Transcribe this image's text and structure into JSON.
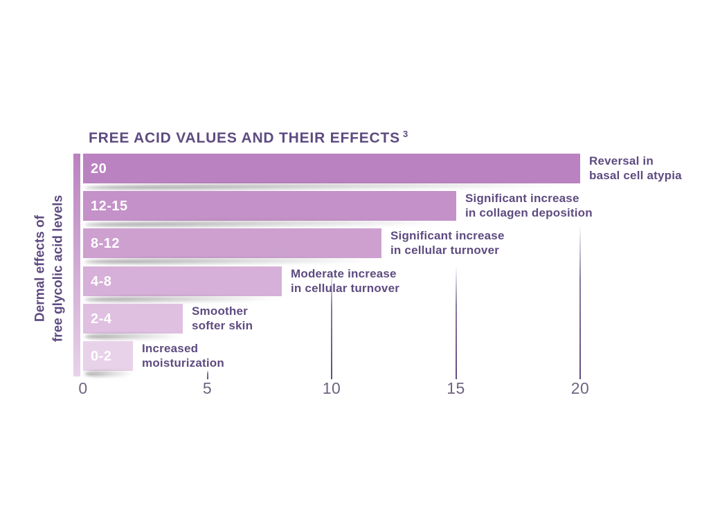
{
  "page": {
    "background": "#ffffff"
  },
  "chart_data": {
    "type": "bar",
    "orientation": "horizontal",
    "title": "FREE ACID VALUES AND THEIR EFFECTS",
    "title_superscript": "3",
    "y_axis_label_lines": [
      "Dermal effects of",
      "free glycolic acid levels"
    ],
    "categories": [
      "20",
      "12-15",
      "8-12",
      "4-8",
      "2-4",
      "0-2"
    ],
    "values": [
      20,
      15,
      12,
      8,
      4,
      2
    ],
    "effects": [
      [
        "Reversal in",
        "basal cell atypia"
      ],
      [
        "Significant increase",
        "in collagen deposition"
      ],
      [
        "Significant increase",
        "in cellular turnover"
      ],
      [
        "Moderate increase",
        "in cellular turnover"
      ],
      [
        "Smoother",
        "softer skin"
      ],
      [
        "Increased",
        "moisturization"
      ]
    ],
    "bar_colors": [
      "#ba82c0",
      "#c491c8",
      "#cda0d0",
      "#d6b0d8",
      "#dfc0e1",
      "#e8d2e9"
    ],
    "x_ticks": [
      0,
      5,
      10,
      15,
      20
    ],
    "xlim": [
      0,
      20
    ],
    "grid": "partial vertical lines at 5, 10, 15, 20",
    "legend": "none",
    "title_color": "#5e4b80",
    "label_color": "#5e4b80",
    "bar_value_color": "#ffffff",
    "tick_label_color": "#6f6380",
    "gridline_color": "#5e4b80"
  }
}
